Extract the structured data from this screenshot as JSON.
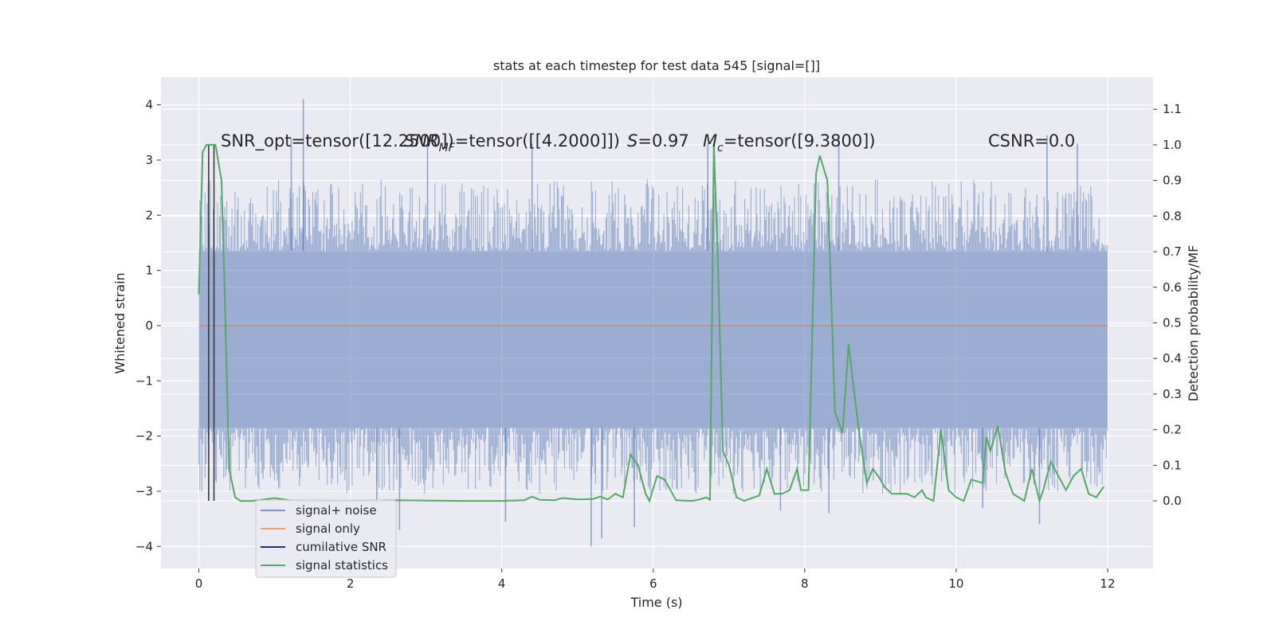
{
  "chart_data": {
    "type": "line",
    "title": "stats at each timestep for test data 545 [signal=[]]",
    "xlabel": "Time (s)",
    "ylabel": "Whitened strain",
    "y2label": "Detection probability/MF",
    "xlim": [
      -0.5,
      12.6
    ],
    "ylim": [
      -4.4,
      4.5
    ],
    "y2lim": [
      -0.19,
      1.19
    ],
    "xticks": [
      0,
      2,
      4,
      6,
      8,
      10,
      12
    ],
    "yticks": [
      -4,
      -3,
      -2,
      -1,
      0,
      1,
      2,
      3,
      4
    ],
    "y2ticks": [
      0.0,
      0.1,
      0.2,
      0.3,
      0.4,
      0.5,
      0.6,
      0.7,
      0.8,
      0.9,
      1.0,
      1.1
    ],
    "grid": true,
    "legend_position": "lower-left",
    "annotations": [
      {
        "text": "SNR_opt=tensor([12.2500])",
        "x": 0.22,
        "y": 3.3
      },
      {
        "text": "SNR_MF=tensor([[4.2000]])",
        "x": 2.65,
        "y": 3.3,
        "parts": [
          "SNR",
          "MF",
          "=tensor([[4.2000]])"
        ]
      },
      {
        "text": "S=0.97",
        "x": 5.7,
        "y": 3.3,
        "parts": [
          "S",
          "=0.97"
        ]
      },
      {
        "text": "M_c=tensor([9.3800])",
        "x": 6.7,
        "y": 3.3,
        "parts": [
          "M",
          "c",
          "=tensor([9.3800])"
        ]
      },
      {
        "text": "CSNR=0.0",
        "x": 10.42,
        "y": 3.3
      }
    ],
    "series": [
      {
        "name": "signal+ noise",
        "color": "#4c72b0",
        "axis": "left",
        "style": "dense-noise",
        "x_range": [
          0,
          12
        ],
        "typical_envelope": [
          -1.85,
          1.35
        ],
        "peaks": [
          {
            "x": 1.38,
            "y": 4.1
          },
          {
            "x": 1.22,
            "y": 3.4
          },
          {
            "x": 3.02,
            "y": 3.25
          },
          {
            "x": 4.4,
            "y": 3.3
          },
          {
            "x": 6.72,
            "y": 3.3
          },
          {
            "x": 8.45,
            "y": 3.4
          },
          {
            "x": 11.2,
            "y": 3.45
          },
          {
            "x": 11.6,
            "y": 3.3
          },
          {
            "x": 2.65,
            "y": -3.7
          },
          {
            "x": 5.18,
            "y": -4.0
          },
          {
            "x": 5.32,
            "y": -3.85
          },
          {
            "x": 4.05,
            "y": -3.55
          },
          {
            "x": 5.75,
            "y": -3.65
          },
          {
            "x": 11.1,
            "y": -3.6
          },
          {
            "x": 10.35,
            "y": -3.3
          },
          {
            "x": 2.35,
            "y": -3.2
          },
          {
            "x": 7.68,
            "y": -3.35
          },
          {
            "x": 8.32,
            "y": -3.4
          }
        ]
      },
      {
        "name": "signal only",
        "color": "#dd8452",
        "axis": "left",
        "x": [
          0,
          12
        ],
        "values": [
          0,
          0
        ]
      },
      {
        "name": "cumilative SNR",
        "color": "#1f2f7a",
        "axis": "right",
        "x": [],
        "values": []
      },
      {
        "name": "signal statistics",
        "color": "#55a868",
        "axis": "right",
        "x": [
          0.0,
          0.05,
          0.1,
          0.15,
          0.22,
          0.3,
          0.34,
          0.4,
          0.48,
          0.55,
          0.7,
          0.9,
          1.0,
          1.2,
          1.5,
          2.0,
          2.5,
          3.0,
          3.5,
          4.0,
          4.3,
          4.4,
          4.5,
          4.7,
          4.8,
          5.0,
          5.2,
          5.3,
          5.4,
          5.5,
          5.6,
          5.7,
          5.8,
          5.9,
          5.95,
          6.05,
          6.15,
          6.3,
          6.5,
          6.6,
          6.7,
          6.75,
          6.8,
          6.85,
          6.92,
          7.0,
          7.1,
          7.2,
          7.4,
          7.5,
          7.6,
          7.65,
          7.7,
          7.8,
          7.9,
          7.95,
          8.05,
          8.15,
          8.2,
          8.3,
          8.4,
          8.5,
          8.58,
          8.65,
          8.72,
          8.82,
          8.9,
          9.0,
          9.05,
          9.15,
          9.25,
          9.35,
          9.45,
          9.55,
          9.6,
          9.7,
          9.8,
          9.9,
          10.0,
          10.1,
          10.2,
          10.35,
          10.4,
          10.45,
          10.55,
          10.65,
          10.75,
          10.9,
          11.0,
          11.1,
          11.15,
          11.25,
          11.35,
          11.45,
          11.55,
          11.65,
          11.75,
          11.85,
          11.95
        ],
        "values": [
          0.58,
          0.98,
          1.0,
          1.0,
          1.0,
          0.9,
          0.6,
          0.09,
          0.01,
          0.0,
          0.0,
          0.005,
          0.008,
          0.002,
          0.001,
          0.0,
          0.002,
          0.001,
          0.0,
          0.0,
          0.002,
          0.012,
          0.003,
          0.002,
          0.008,
          0.004,
          0.005,
          0.012,
          0.004,
          0.02,
          0.01,
          0.13,
          0.1,
          0.02,
          0.0,
          0.07,
          0.06,
          0.002,
          0.0,
          0.003,
          0.01,
          0.003,
          1.0,
          0.7,
          0.14,
          0.1,
          0.01,
          0.0,
          0.015,
          0.09,
          0.02,
          0.02,
          0.02,
          0.03,
          0.09,
          0.03,
          0.03,
          0.92,
          0.97,
          0.9,
          0.25,
          0.19,
          0.44,
          0.31,
          0.19,
          0.05,
          0.09,
          0.06,
          0.04,
          0.02,
          0.02,
          0.02,
          0.01,
          0.03,
          0.01,
          0.0,
          0.2,
          0.03,
          0.01,
          0.0,
          0.06,
          0.05,
          0.18,
          0.14,
          0.21,
          0.08,
          0.02,
          0.0,
          0.09,
          0.0,
          0.03,
          0.11,
          0.07,
          0.03,
          0.07,
          0.09,
          0.02,
          0.01,
          0.04
        ]
      }
    ],
    "vertical_markers": [
      {
        "x": 0.13,
        "color": "#3a3a3a"
      },
      {
        "x": 0.2,
        "color": "#3a3a3a"
      }
    ]
  }
}
